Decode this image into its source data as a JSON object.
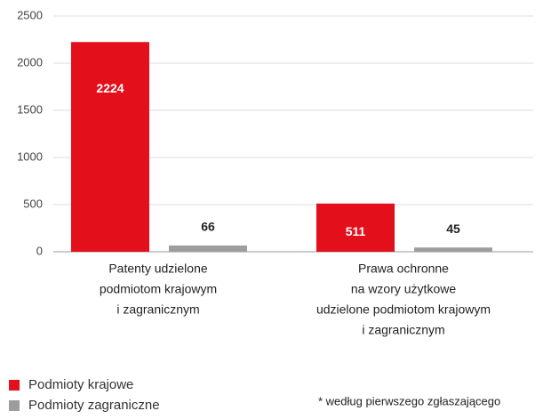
{
  "chart_data": {
    "type": "bar",
    "categories": [
      [
        "Patenty udzielone",
        "podmiotom krajowym",
        "i zagranicznym"
      ],
      [
        "Prawa ochronne",
        "na wzory użytkowe",
        "udzielone podmiotom krajowym",
        "i zagranicznym"
      ]
    ],
    "series": [
      {
        "name": "Podmioty krajowe",
        "color": "#e3101b",
        "values": [
          2224,
          511
        ]
      },
      {
        "name": "Podmioty zagraniczne",
        "color": "#9d9d9d",
        "values": [
          66,
          45
        ]
      }
    ],
    "ylim": [
      0,
      2500
    ],
    "yticks": [
      0,
      500,
      1000,
      1500,
      2000,
      2500
    ],
    "grid": true,
    "legend": "bottom-left",
    "note": "* według pierwszego zgłaszającego"
  }
}
